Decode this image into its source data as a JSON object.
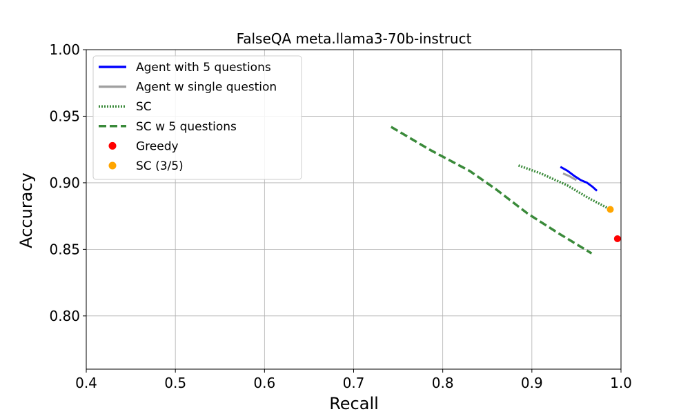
{
  "chart_data": {
    "type": "line",
    "title": "FalseQA meta.llama3-70b-instruct",
    "xlabel": "Recall",
    "ylabel": "Accuracy",
    "xlim": [
      0.4,
      1.0
    ],
    "ylim": [
      0.76,
      1.0
    ],
    "xticks": [
      0.4,
      0.5,
      0.6,
      0.7,
      0.8,
      0.9,
      1.0
    ],
    "xtick_labels": [
      "0.4",
      "0.5",
      "0.6",
      "0.7",
      "0.8",
      "0.9",
      "1.0"
    ],
    "yticks": [
      0.8,
      0.85,
      0.9,
      0.95,
      1.0
    ],
    "ytick_labels": [
      "0.80",
      "0.85",
      "0.90",
      "0.95",
      "1.00"
    ],
    "grid": true,
    "legend_position": "top-left",
    "series": [
      {
        "name": "Agent with 5 questions",
        "kind": "line",
        "style": "solid",
        "color": "#0000ff",
        "x": [
          0.932,
          0.94,
          0.948,
          0.955,
          0.962,
          0.968,
          0.973
        ],
        "y": [
          0.912,
          0.909,
          0.905,
          0.902,
          0.9,
          0.897,
          0.894
        ]
      },
      {
        "name": "Agent w single question",
        "kind": "line",
        "style": "solid",
        "color": "#a0a0a0",
        "x": [
          0.935,
          0.942,
          0.95
        ],
        "y": [
          0.907,
          0.905,
          0.902
        ]
      },
      {
        "name": "SC",
        "kind": "line",
        "style": "dotted-dash",
        "color": "#3a8a3a",
        "x": [
          0.885,
          0.91,
          0.94,
          0.965,
          0.988
        ],
        "y": [
          0.913,
          0.907,
          0.898,
          0.888,
          0.88
        ]
      },
      {
        "name": "SC w 5 questions",
        "kind": "line",
        "style": "dashed",
        "color": "#3a8a3a",
        "x": [
          0.742,
          0.785,
          0.83,
          0.86,
          0.895,
          0.93,
          0.967
        ],
        "y": [
          0.942,
          0.925,
          0.909,
          0.895,
          0.877,
          0.862,
          0.847
        ]
      },
      {
        "name": "Greedy",
        "kind": "point",
        "color": "#ff0000",
        "x": [
          0.996
        ],
        "y": [
          0.858
        ]
      },
      {
        "name": "SC (3/5)",
        "kind": "point",
        "color": "#ffa500",
        "x": [
          0.988
        ],
        "y": [
          0.88
        ]
      }
    ]
  }
}
